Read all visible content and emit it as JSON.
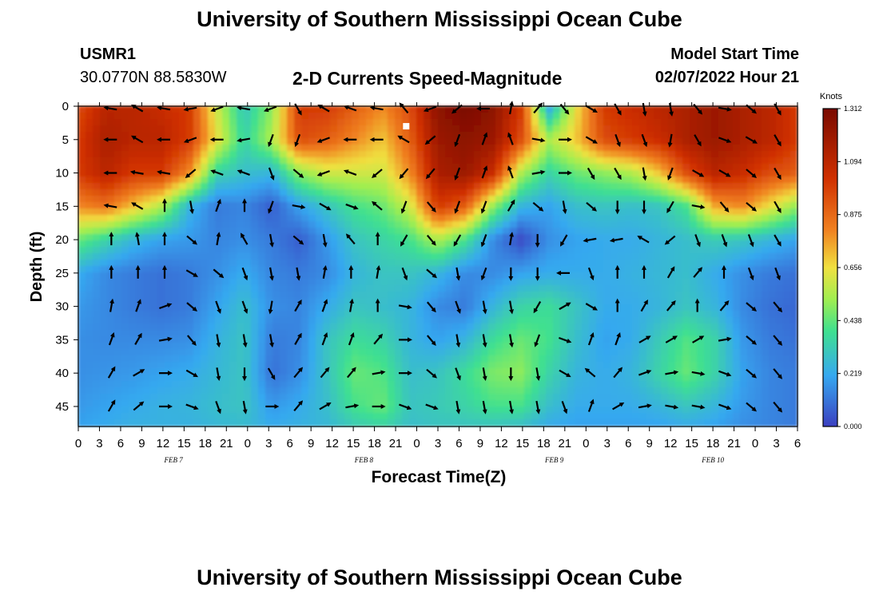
{
  "header": {
    "title": "University of Southern Mississippi Ocean Cube",
    "station": "USMR1",
    "coords": "30.0770N  88.5830W",
    "subtitle": "2-D Currents Speed-Magnitude",
    "model_start_label": "Model Start Time",
    "model_start_value": "02/07/2022 Hour 21"
  },
  "footer": {
    "title": "University of Southern Mississippi Ocean Cube"
  },
  "chart_data": {
    "type": "heatmap",
    "title": "2-D Currents Speed-Magnitude",
    "xlabel": "Forecast Time(Z)",
    "ylabel": "Depth (ft)",
    "x_tick_labels": [
      "0",
      "3",
      "6",
      "9",
      "12",
      "15",
      "18",
      "21",
      "0",
      "3",
      "6",
      "9",
      "12",
      "15",
      "18",
      "21",
      "0",
      "3",
      "6",
      "9",
      "12",
      "15",
      "18",
      "21",
      "0",
      "3",
      "6",
      "9",
      "12",
      "15",
      "18",
      "21",
      "0",
      "3",
      "6"
    ],
    "date_labels": [
      {
        "label": "FEB 7",
        "hour_index": 4.5
      },
      {
        "label": "FEB 8",
        "hour_index": 13.5
      },
      {
        "label": "FEB 9",
        "hour_index": 22.5
      },
      {
        "label": "FEB 10",
        "hour_index": 30.0
      }
    ],
    "y_ticks": [
      0,
      5,
      10,
      15,
      20,
      25,
      30,
      35,
      40,
      45
    ],
    "ylim": [
      0,
      48
    ],
    "colorbar": {
      "unit": "Knots",
      "ticks": [
        "1.312",
        "1.094",
        "0.875",
        "0.656",
        "0.438",
        "0.219",
        "0.000"
      ],
      "range": [
        0,
        1.312
      ]
    },
    "colors": {
      "low": "#3b3fc0",
      "mid_low": "#36a8f0",
      "mid": "#3fe090",
      "mid_high": "#f0e040",
      "high_mid": "#f08020",
      "high": "#d03000",
      "max": "#7a0a00"
    },
    "speed_grid": {
      "depths": [
        0,
        5,
        10,
        15,
        20,
        25,
        30,
        35,
        40,
        45,
        48
      ],
      "columns": [
        {
          "hour": 0,
          "values": [
            0.95,
            1.0,
            1.0,
            0.8,
            0.45,
            0.22,
            0.18,
            0.16,
            0.16,
            0.18,
            0.2
          ]
        },
        {
          "hour": 3,
          "values": [
            1.1,
            1.15,
            1.1,
            0.85,
            0.35,
            0.15,
            0.15,
            0.15,
            0.17,
            0.2,
            0.22
          ]
        },
        {
          "hour": 6,
          "values": [
            1.1,
            1.1,
            1.0,
            0.7,
            0.25,
            0.12,
            0.12,
            0.15,
            0.18,
            0.22,
            0.24
          ]
        },
        {
          "hour": 9,
          "values": [
            1.05,
            1.1,
            1.0,
            0.55,
            0.2,
            0.1,
            0.1,
            0.15,
            0.2,
            0.24,
            0.24
          ]
        },
        {
          "hour": 12,
          "values": [
            1.0,
            1.0,
            0.8,
            0.25,
            0.18,
            0.12,
            0.12,
            0.16,
            0.22,
            0.25,
            0.24
          ]
        },
        {
          "hour": 15,
          "values": [
            0.6,
            0.65,
            0.35,
            0.12,
            0.14,
            0.16,
            0.2,
            0.24,
            0.26,
            0.28,
            0.26
          ]
        },
        {
          "hour": 18,
          "values": [
            0.3,
            0.35,
            0.28,
            0.14,
            0.16,
            0.22,
            0.28,
            0.3,
            0.3,
            0.3,
            0.27
          ]
        },
        {
          "hour": 21,
          "values": [
            0.5,
            0.55,
            0.25,
            0.06,
            0.12,
            0.14,
            0.16,
            0.12,
            0.1,
            0.18,
            0.22
          ]
        },
        {
          "hour": 0,
          "values": [
            1.0,
            0.95,
            0.5,
            0.2,
            0.06,
            0.12,
            0.14,
            0.14,
            0.16,
            0.22,
            0.24
          ]
        },
        {
          "hour": 3,
          "values": [
            1.0,
            0.9,
            0.6,
            0.3,
            0.18,
            0.15,
            0.22,
            0.3,
            0.3,
            0.28,
            0.26
          ]
        },
        {
          "hour": 6,
          "values": [
            0.9,
            0.8,
            0.6,
            0.4,
            0.3,
            0.25,
            0.3,
            0.38,
            0.45,
            0.4,
            0.32
          ]
        },
        {
          "hour": 9,
          "values": [
            0.8,
            0.7,
            0.6,
            0.45,
            0.35,
            0.3,
            0.28,
            0.35,
            0.42,
            0.45,
            0.35
          ]
        },
        {
          "hour": 12,
          "values": [
            0.95,
            0.9,
            0.8,
            0.6,
            0.4,
            0.3,
            0.25,
            0.25,
            0.28,
            0.3,
            0.28
          ]
        },
        {
          "hour": 15,
          "values": [
            1.25,
            1.2,
            1.15,
            1.0,
            0.55,
            0.25,
            0.15,
            0.2,
            0.3,
            0.32,
            0.3
          ]
        },
        {
          "hour": 18,
          "values": [
            1.31,
            1.25,
            1.2,
            0.9,
            0.4,
            0.15,
            0.12,
            0.25,
            0.38,
            0.35,
            0.3
          ]
        },
        {
          "hour": 21,
          "values": [
            1.25,
            1.2,
            1.05,
            0.5,
            0.15,
            0.15,
            0.25,
            0.38,
            0.48,
            0.4,
            0.3
          ]
        },
        {
          "hour": 0,
          "values": [
            1.0,
            0.95,
            0.55,
            0.25,
            0.02,
            0.2,
            0.35,
            0.45,
            0.5,
            0.4,
            0.28
          ]
        },
        {
          "hour": 3,
          "values": [
            0.2,
            0.55,
            0.35,
            0.2,
            0.16,
            0.22,
            0.38,
            0.4,
            0.35,
            0.28,
            0.22
          ]
        },
        {
          "hour": 6,
          "values": [
            0.65,
            0.7,
            0.45,
            0.28,
            0.2,
            0.22,
            0.3,
            0.28,
            0.25,
            0.22,
            0.2
          ]
        },
        {
          "hour": 9,
          "values": [
            1.0,
            0.95,
            0.5,
            0.3,
            0.22,
            0.22,
            0.22,
            0.2,
            0.22,
            0.22,
            0.2
          ]
        },
        {
          "hour": 12,
          "values": [
            1.05,
            1.0,
            0.55,
            0.28,
            0.22,
            0.24,
            0.22,
            0.22,
            0.25,
            0.22,
            0.2
          ]
        },
        {
          "hour": 15,
          "values": [
            1.1,
            1.05,
            0.7,
            0.3,
            0.25,
            0.26,
            0.25,
            0.32,
            0.35,
            0.25,
            0.2
          ]
        },
        {
          "hour": 18,
          "values": [
            1.15,
            1.15,
            0.95,
            0.4,
            0.28,
            0.28,
            0.3,
            0.42,
            0.45,
            0.3,
            0.22
          ]
        },
        {
          "hour": 21,
          "values": [
            1.2,
            1.2,
            1.1,
            0.75,
            0.32,
            0.22,
            0.25,
            0.35,
            0.35,
            0.25,
            0.2
          ]
        },
        {
          "hour": 0,
          "values": [
            1.15,
            1.15,
            1.05,
            0.8,
            0.3,
            0.16,
            0.15,
            0.18,
            0.2,
            0.18,
            0.16
          ]
        },
        {
          "hour": 3,
          "values": [
            1.1,
            1.1,
            0.95,
            0.65,
            0.25,
            0.12,
            0.1,
            0.12,
            0.14,
            0.14,
            0.14
          ]
        },
        {
          "hour": 6,
          "values": [
            1.0,
            1.0,
            0.9,
            0.5,
            0.2,
            0.1,
            0.08,
            0.1,
            0.12,
            0.12,
            0.12
          ]
        }
      ]
    },
    "vectors": {
      "depths": [
        0,
        5,
        10,
        15,
        20,
        25,
        30,
        35,
        40,
        45
      ],
      "note_dir": "compass degrees the arrow points toward (0=up)",
      "columns": [
        {
          "hour": 3,
          "dirs": [
            280,
            270,
            270,
            280,
            0,
            0,
            10,
            20,
            30,
            30
          ]
        },
        {
          "hour": 6,
          "dirs": [
            300,
            300,
            280,
            300,
            350,
            0,
            20,
            30,
            60,
            50
          ]
        },
        {
          "hour": 9,
          "dirs": [
            280,
            270,
            280,
            0,
            0,
            0,
            70,
            80,
            90,
            90
          ]
        },
        {
          "hour": 12,
          "dirs": [
            260,
            250,
            230,
            170,
            130,
            120,
            130,
            140,
            120,
            110
          ]
        },
        {
          "hour": 15,
          "dirs": [
            250,
            270,
            290,
            20,
            10,
            130,
            160,
            170,
            170,
            160
          ]
        },
        {
          "hour": 18,
          "dirs": [
            280,
            260,
            290,
            0,
            330,
            160,
            160,
            170,
            180,
            170
          ]
        },
        {
          "hour": 21,
          "dirs": [
            250,
            200,
            160,
            200,
            170,
            170,
            190,
            170,
            150,
            90
          ]
        },
        {
          "hour": 0,
          "dirs": [
            150,
            200,
            130,
            100,
            130,
            170,
            30,
            30,
            40,
            40
          ]
        },
        {
          "hour": 3,
          "dirs": [
            300,
            250,
            250,
            120,
            170,
            10,
            20,
            20,
            40,
            60
          ]
        },
        {
          "hour": 6,
          "dirs": [
            290,
            270,
            290,
            110,
            320,
            0,
            10,
            20,
            40,
            80
          ]
        },
        {
          "hour": 9,
          "dirs": [
            280,
            270,
            230,
            310,
            0,
            10,
            0,
            40,
            80,
            90
          ]
        },
        {
          "hour": 12,
          "dirs": [
            320,
            300,
            220,
            200,
            210,
            160,
            100,
            90,
            90,
            110
          ]
        },
        {
          "hour": 15,
          "dirs": [
            250,
            230,
            220,
            140,
            140,
            130,
            140,
            140,
            130,
            110
          ]
        },
        {
          "hour": 18,
          "dirs": [
            230,
            200,
            200,
            200,
            210,
            170,
            160,
            170,
            160,
            170
          ]
        },
        {
          "hour": 21,
          "dirs": [
            270,
            20,
            20,
            200,
            200,
            200,
            170,
            170,
            170,
            170
          ]
        },
        {
          "hour": 0,
          "dirs": [
            10,
            340,
            340,
            30,
            10,
            180,
            170,
            170,
            180,
            170
          ]
        },
        {
          "hour": 3,
          "dirs": [
            40,
            100,
            80,
            130,
            180,
            180,
            210,
            200,
            170,
            170
          ]
        },
        {
          "hour": 6,
          "dirs": [
            140,
            90,
            90,
            170,
            210,
            270,
            60,
            110,
            120,
            160
          ]
        },
        {
          "hour": 9,
          "dirs": [
            120,
            120,
            150,
            130,
            260,
            160,
            120,
            20,
            310,
            20
          ]
        },
        {
          "hour": 12,
          "dirs": [
            150,
            160,
            150,
            180,
            260,
            0,
            0,
            20,
            40,
            60
          ]
        },
        {
          "hour": 15,
          "dirs": [
            170,
            160,
            170,
            180,
            300,
            0,
            30,
            60,
            70,
            80
          ]
        },
        {
          "hour": 18,
          "dirs": [
            170,
            190,
            200,
            210,
            230,
            30,
            40,
            60,
            80,
            100
          ]
        },
        {
          "hour": 21,
          "dirs": [
            140,
            150,
            120,
            100,
            160,
            40,
            0,
            60,
            100,
            100
          ]
        },
        {
          "hour": 0,
          "dirs": [
            100,
            110,
            120,
            140,
            160,
            0,
            40,
            80,
            110,
            110
          ]
        },
        {
          "hour": 3,
          "dirs": [
            130,
            120,
            130,
            130,
            160,
            160,
            130,
            130,
            130,
            130
          ]
        },
        {
          "hour": 6,
          "dirs": [
            150,
            150,
            150,
            150,
            150,
            160,
            140,
            140,
            140,
            140
          ]
        }
      ]
    },
    "marker": {
      "hour_index": 15.5,
      "depth": 3
    }
  }
}
